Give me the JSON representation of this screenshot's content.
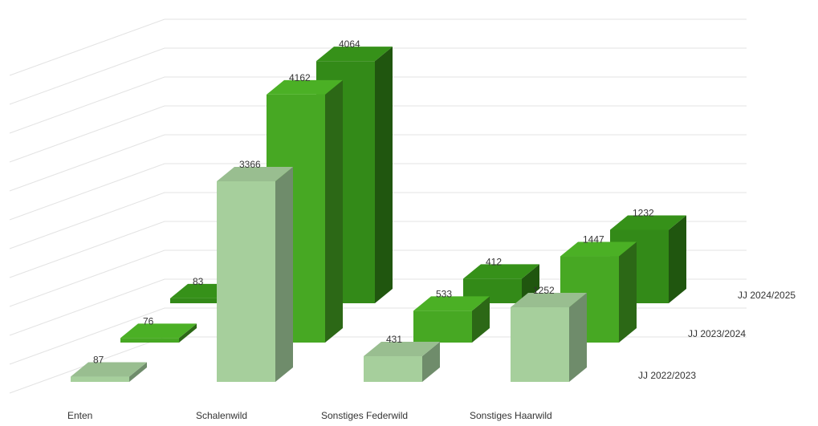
{
  "chart_data": {
    "type": "bar",
    "subtype": "3d-column",
    "categories": [
      "Enten",
      "Schalenwild",
      "Sonstiges Federwild",
      "Sonstiges Haarwild"
    ],
    "series": [
      {
        "name": "JJ 2022/2023",
        "values": [
          87,
          3366,
          431,
          1252
        ],
        "color": "#a6cf9c"
      },
      {
        "name": "JJ 2023/2024",
        "values": [
          76,
          4162,
          533,
          1447
        ],
        "color": "#47a823"
      },
      {
        "name": "JJ 2024/2025",
        "values": [
          83,
          4064,
          412,
          1232
        ],
        "color": "#338a18"
      }
    ],
    "ylim": [
      0,
      5000
    ],
    "grid": true,
    "legend": "right"
  }
}
